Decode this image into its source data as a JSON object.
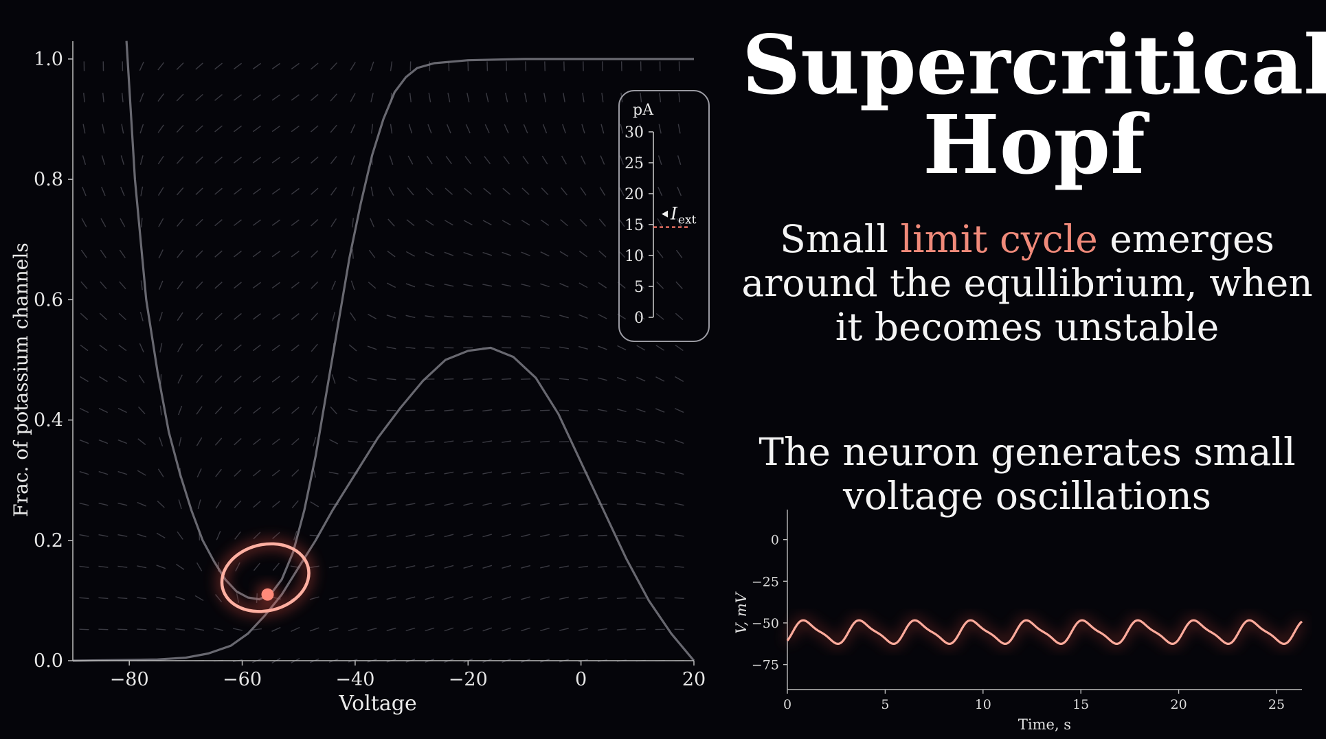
{
  "title": {
    "line1": "Supercritical",
    "line2": "Hopf"
  },
  "caption1": {
    "line1_pre": "Small ",
    "line1_highlight": "limit cycle",
    "line1_post": " emerges",
    "line2": "around the equllibrium, when",
    "line3": "it becomes unstable"
  },
  "caption2": {
    "line1": "The neuron generates small",
    "line2": "voltage oscillations"
  },
  "colors": {
    "background": "#05050a",
    "accent": "#f08a7a",
    "accent_glow": "#ff5a4a",
    "curve": "#7a7a82",
    "axis": "#bdbdbd"
  },
  "slider": {
    "unit": "pA",
    "ticks": [
      "30",
      "25",
      "20",
      "15",
      "10",
      "5",
      "0"
    ],
    "min": 0,
    "max": 30,
    "value": 14.6,
    "label_main": "I",
    "label_sub": "ext"
  },
  "chart_data": [
    {
      "type": "line",
      "name": "phase-plane",
      "xlabel": "Voltage",
      "ylabel": "Frac. of potassium channels",
      "xlim": [
        -90,
        20
      ],
      "ylim": [
        0,
        1.025
      ],
      "xticks": [
        "−80",
        "−60",
        "−40",
        "−20",
        "0",
        "20"
      ],
      "xtick_values": [
        -80,
        -60,
        -40,
        -20,
        0,
        20
      ],
      "yticks": [
        "0.0",
        "0.2",
        "0.4",
        "0.6",
        "0.8",
        "1.0"
      ],
      "ytick_values": [
        0,
        0.2,
        0.4,
        0.6,
        0.8,
        1.0
      ],
      "vector_field": true,
      "nullclines": [
        {
          "points": [
            [
              -80.5,
              1.03
            ],
            [
              -79,
              0.8
            ],
            [
              -77,
              0.6
            ],
            [
              -75,
              0.48
            ],
            [
              -73,
              0.38
            ],
            [
              -71,
              0.31
            ],
            [
              -69,
              0.25
            ],
            [
              -67,
              0.2
            ],
            [
              -65,
              0.165
            ],
            [
              -63,
              0.135
            ],
            [
              -61,
              0.115
            ],
            [
              -59,
              0.105
            ],
            [
              -57,
              0.102
            ],
            [
              -55,
              0.11
            ],
            [
              -53,
              0.135
            ],
            [
              -51,
              0.18
            ],
            [
              -49,
              0.25
            ],
            [
              -47,
              0.34
            ],
            [
              -45,
              0.45
            ],
            [
              -43,
              0.56
            ],
            [
              -41,
              0.67
            ],
            [
              -39,
              0.76
            ],
            [
              -37,
              0.84
            ],
            [
              -35,
              0.9
            ],
            [
              -33,
              0.945
            ],
            [
              -31,
              0.97
            ],
            [
              -29,
              0.985
            ],
            [
              -26,
              0.993
            ],
            [
              -20,
              0.998
            ],
            [
              -10,
              1.0
            ],
            [
              0,
              1.0
            ],
            [
              20,
              1.0
            ]
          ]
        },
        {
          "points": [
            [
              -90,
              0
            ],
            [
              -75,
              0.002
            ],
            [
              -70,
              0.005
            ],
            [
              -66,
              0.012
            ],
            [
              -62,
              0.025
            ],
            [
              -59,
              0.045
            ],
            [
              -56,
              0.075
            ],
            [
              -53,
              0.11
            ],
            [
              -50,
              0.155
            ],
            [
              -47,
              0.2
            ],
            [
              -44,
              0.25
            ],
            [
              -40,
              0.31
            ],
            [
              -36,
              0.37
            ],
            [
              -32,
              0.42
            ],
            [
              -28,
              0.465
            ],
            [
              -24,
              0.5
            ],
            [
              -20,
              0.515
            ],
            [
              -16,
              0.52
            ],
            [
              -12,
              0.505
            ],
            [
              -8,
              0.47
            ],
            [
              -4,
              0.41
            ],
            [
              0,
              0.33
            ],
            [
              4,
              0.25
            ],
            [
              8,
              0.17
            ],
            [
              12,
              0.1
            ],
            [
              16,
              0.045
            ],
            [
              20,
              0
            ]
          ]
        }
      ],
      "limit_cycle": {
        "center": [
          -55.9,
          0.138
        ],
        "rx": 7.8,
        "ry": 0.055,
        "tilt_deg": -14
      },
      "equilibrium": [
        -55.5,
        0.11
      ]
    },
    {
      "type": "line",
      "name": "voltage-trace",
      "xlabel": "Time, s",
      "ylabel": "V, mV",
      "xlim": [
        0,
        26.3
      ],
      "ylim": [
        -90,
        18
      ],
      "xticks": [
        "0",
        "5",
        "10",
        "15",
        "20",
        "25"
      ],
      "xtick_values": [
        0,
        5,
        10,
        15,
        20,
        25
      ],
      "yticks": [
        "0",
        "−25",
        "−50",
        "−75"
      ],
      "ytick_values": [
        0,
        -25,
        -50,
        -75
      ],
      "period": 2.85,
      "v_max": -48,
      "v_min": -63,
      "t_start": 0,
      "t_end": 26.3
    }
  ]
}
